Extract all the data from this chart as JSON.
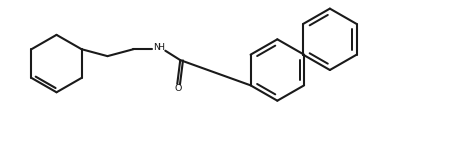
{
  "background_color": "#ffffff",
  "line_color": "#1a1a1a",
  "line_width": 1.5,
  "fig_width": 4.51,
  "fig_height": 1.41,
  "dpi": 100,
  "xlim": [
    0,
    9.02
  ],
  "ylim": [
    0,
    2.82
  ]
}
